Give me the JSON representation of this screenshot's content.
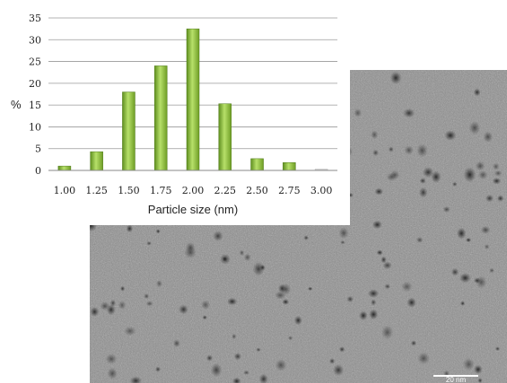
{
  "chart_data": {
    "type": "bar",
    "categories": [
      "1.00",
      "1.25",
      "1.50",
      "1.75",
      "2.00",
      "2.25",
      "2.50",
      "2.75",
      "3.00"
    ],
    "values": [
      1.0,
      4.3,
      18.0,
      24.0,
      32.5,
      15.3,
      2.7,
      1.8,
      0.3
    ],
    "xlabel": "Particle size (nm)",
    "ylabel": "%",
    "ylim": [
      0,
      35
    ],
    "yticks": [
      "0",
      "5",
      "10",
      "15",
      "20",
      "25",
      "30",
      "35"
    ],
    "grid": true,
    "bar_color": "#8cbf3a"
  },
  "micrograph": {
    "scale_bar_label": "20 nm"
  }
}
